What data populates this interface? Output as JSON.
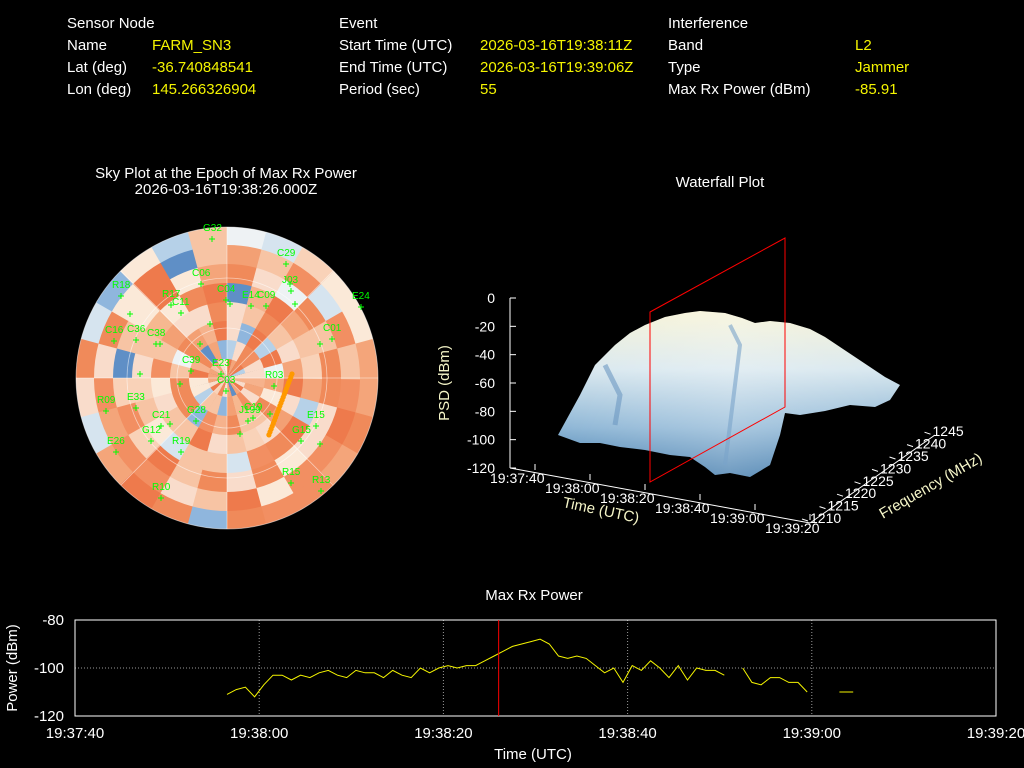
{
  "header": {
    "sensor": {
      "heading": "Sensor Node",
      "rows": [
        {
          "label": "Name",
          "value": "FARM_SN3"
        },
        {
          "label": "Lat (deg)",
          "value": "-36.740848541"
        },
        {
          "label": "Lon (deg)",
          "value": "145.266326904"
        }
      ]
    },
    "event": {
      "heading": "Event",
      "rows": [
        {
          "label": "Start Time (UTC)",
          "value": "2026-03-16T19:38:11Z"
        },
        {
          "label": "End Time (UTC)",
          "value": "2026-03-16T19:39:06Z"
        },
        {
          "label": "Period (sec)",
          "value": "55"
        }
      ]
    },
    "interference": {
      "heading": "Interference",
      "rows": [
        {
          "label": "Band",
          "value": "L2"
        },
        {
          "label": "Type",
          "value": "Jammer"
        },
        {
          "label": "Max Rx Power (dBm)",
          "value": "-85.91"
        }
      ]
    }
  },
  "colors": {
    "label": "#ffffff",
    "value": "#f5f500",
    "satellite": "#00ff00",
    "trace": "#f5f500",
    "marker": "#ff0000",
    "jammer_track": "#ff9900",
    "waterfall_frame": "#ff0000"
  },
  "skyplot": {
    "title": "Sky Plot at the Epoch of Max Rx Power",
    "epoch": "2026-03-16T19:38:26.000Z",
    "satellites": [
      {
        "id": "G32"
      },
      {
        "id": "C29"
      },
      {
        "id": "J03"
      },
      {
        "id": "R18"
      },
      {
        "id": "E24"
      },
      {
        "id": "C06"
      },
      {
        "id": "C04"
      },
      {
        "id": "C09"
      },
      {
        "id": "E14"
      },
      {
        "id": "C11"
      },
      {
        "id": "C36"
      },
      {
        "id": "C38"
      },
      {
        "id": "C16"
      },
      {
        "id": "R17"
      },
      {
        "id": "C01"
      },
      {
        "id": "C39"
      },
      {
        "id": "E23"
      },
      {
        "id": "R03"
      },
      {
        "id": "C03"
      },
      {
        "id": "E33"
      },
      {
        "id": "C21"
      },
      {
        "id": "G28"
      },
      {
        "id": "R09"
      },
      {
        "id": "E15"
      },
      {
        "id": "G12"
      },
      {
        "id": "R19"
      },
      {
        "id": "E26"
      },
      {
        "id": "G15"
      },
      {
        "id": "R10"
      },
      {
        "id": "R15"
      },
      {
        "id": "R13"
      },
      {
        "id": "J199"
      },
      {
        "id": "C19"
      }
    ]
  },
  "waterfall": {
    "title": "Waterfall Plot",
    "zlabel": "PSD (dBm)",
    "zticks": [
      "0",
      "-20",
      "-40",
      "-60",
      "-80",
      "-100",
      "-120"
    ],
    "time_label": "Time (UTC)",
    "time_ticks": [
      "19:37:40",
      "19:38:00",
      "19:38:20",
      "19:38:40",
      "19:39:00",
      "19:39:20"
    ],
    "freq_label": "Frequency (MHz)",
    "freq_ticks": [
      "1210",
      "1215",
      "1220",
      "1225",
      "1230",
      "1235",
      "1240",
      "1245"
    ]
  },
  "maxpower": {
    "title": "Max Rx Power",
    "ylabel": "Power (dBm)",
    "xlabel": "Time (UTC)",
    "yticks": [
      "-80",
      "-100",
      "-120"
    ],
    "xticks": [
      "19:37:40",
      "19:38:00",
      "19:38:20",
      "19:38:40",
      "19:39:00",
      "19:39:20"
    ]
  },
  "chart_data": {
    "type": "line",
    "title": "Max Rx Power",
    "xlabel": "Time (UTC)",
    "ylabel": "Power (dBm)",
    "x_unit": "seconds after 19:37:40",
    "xlim": [
      0,
      100
    ],
    "ylim": [
      -120,
      -80
    ],
    "grid": true,
    "marker_time": "19:38:26",
    "series": [
      {
        "x": [
          16.5,
          17.5,
          18.5,
          19.5,
          20.5,
          21.5,
          22.5,
          23.5,
          24.5,
          25.5,
          26.5,
          27.5,
          28.5,
          29.5,
          30.5,
          31.5,
          32.5,
          33.5,
          34.5,
          35.5,
          36.5,
          37.5,
          38.5,
          39.5,
          40.5,
          41.5,
          42.5,
          43.5,
          44.5,
          45.5,
          46.5,
          47.5,
          48.5,
          49.5,
          50.5,
          51.5,
          52.5,
          53.5,
          54.5,
          55.5,
          56.5,
          57.5,
          58.5,
          59.5,
          60.5,
          61.5,
          62.5,
          63.5,
          64.5,
          65.5,
          66.5,
          67.5,
          68.5,
          69.5,
          70.5
        ],
        "y": [
          -111,
          -109,
          -108,
          -112,
          -107,
          -103,
          -103,
          -105,
          -103,
          -104,
          -102,
          -101,
          -103,
          -104,
          -101,
          -102,
          -102,
          -104,
          -101,
          -103,
          -104,
          -100,
          -102,
          -100,
          -99,
          -100,
          -99,
          -99,
          -97,
          -95,
          -93,
          -91,
          -90,
          -89,
          -88,
          -90,
          -95,
          -96,
          -95,
          -96,
          -99,
          -102,
          -100,
          -106,
          -99,
          -101,
          -97,
          -100,
          -104,
          -99,
          -105,
          -100,
          -101,
          -101,
          -103
        ]
      },
      {
        "x": [
          72.5,
          73.5,
          74.5,
          75.5,
          76.5,
          77.5,
          78.5,
          79.5
        ],
        "y": [
          -100,
          -106,
          -107,
          -104,
          -104,
          -106,
          -106,
          -110
        ]
      },
      {
        "x": [
          83,
          84.5
        ],
        "y": [
          -110,
          -110
        ]
      }
    ]
  }
}
